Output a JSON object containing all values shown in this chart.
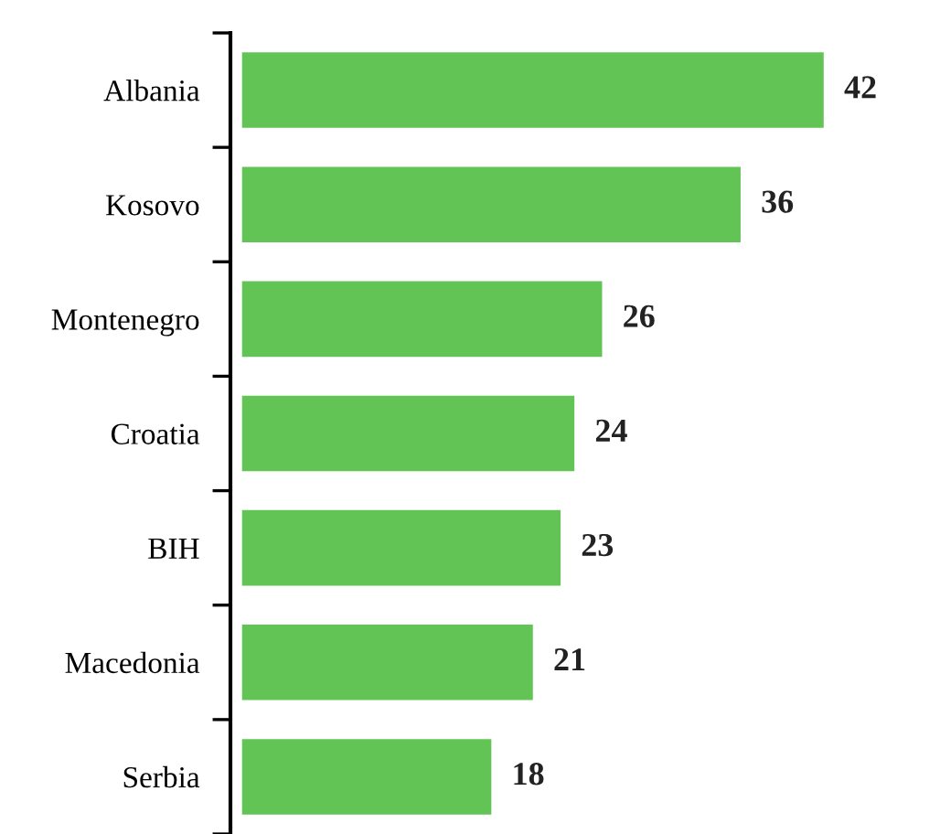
{
  "chart_data": {
    "type": "bar",
    "orientation": "horizontal",
    "categories": [
      "Albania",
      "Kosovo",
      "Montenegro",
      "Croatia",
      "BIH",
      "Macedonia",
      "Serbia"
    ],
    "values": [
      42,
      36,
      26,
      24,
      23,
      21,
      18
    ],
    "color": "#62c454",
    "data_labels": true,
    "grid": false,
    "legend": false
  }
}
